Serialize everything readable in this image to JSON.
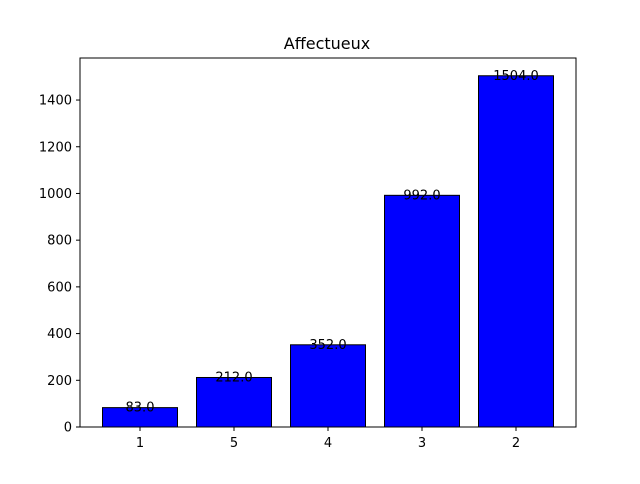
{
  "chart_data": {
    "type": "bar",
    "title": "Affectueux",
    "xlabel": "",
    "ylabel": "",
    "categories": [
      "1",
      "5",
      "4",
      "3",
      "2"
    ],
    "values": [
      83.0,
      212.0,
      352.0,
      992.0,
      1504.0
    ],
    "data_labels": [
      "83.0",
      "212.0",
      "352.0",
      "992.0",
      "1504.0"
    ],
    "ylim": [
      0,
      1580
    ],
    "yticks": [
      0,
      200,
      400,
      600,
      800,
      1000,
      1200,
      1400
    ],
    "grid": false,
    "legend": "none",
    "bar_color": "#0000ff",
    "bar_edge_color": "#000000"
  }
}
